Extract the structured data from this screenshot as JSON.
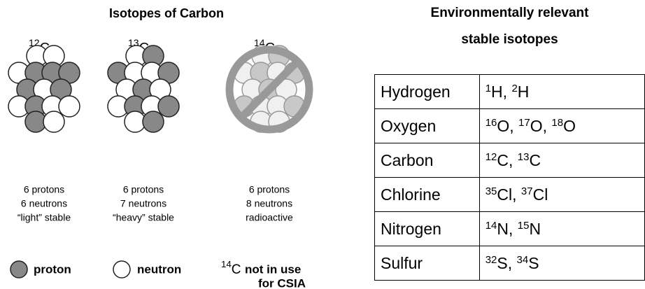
{
  "left": {
    "title": "Isotopes of Carbon",
    "isotopes": [
      {
        "mass": "12",
        "symbol": "C",
        "lines": [
          "6 protons",
          "6 neutrons",
          "“light” stable"
        ]
      },
      {
        "mass": "13",
        "symbol": "C",
        "lines": [
          "6 protons",
          "7 neutrons",
          "“heavy” stable"
        ]
      },
      {
        "mass": "14",
        "symbol": "C",
        "lines": [
          "6 protons",
          "8 neutrons",
          "radioactive"
        ]
      }
    ],
    "legend": {
      "proton": "proton",
      "neutron": "neutron",
      "note": {
        "mass": "14",
        "symbol": "C",
        "lines": [
          "not in use",
          "for CSIA"
        ]
      }
    }
  },
  "right": {
    "title": [
      "Environmentally relevant",
      "stable isotopes"
    ],
    "rows": [
      {
        "element": "Hydrogen",
        "isotopes": [
          {
            "mass": "1",
            "symbol": "H"
          },
          {
            "mass": "2",
            "symbol": "H"
          }
        ]
      },
      {
        "element": "Oxygen",
        "isotopes": [
          {
            "mass": "16",
            "symbol": "O"
          },
          {
            "mass": "17",
            "symbol": "O"
          },
          {
            "mass": "18",
            "symbol": "O"
          }
        ]
      },
      {
        "element": "Carbon",
        "isotopes": [
          {
            "mass": "12",
            "symbol": "C"
          },
          {
            "mass": "13",
            "symbol": "C"
          }
        ]
      },
      {
        "element": "Chlorine",
        "isotopes": [
          {
            "mass": "35",
            "symbol": "Cl"
          },
          {
            "mass": "37",
            "symbol": "Cl"
          }
        ]
      },
      {
        "element": "Nitrogen",
        "isotopes": [
          {
            "mass": "14",
            "symbol": "N"
          },
          {
            "mass": "15",
            "symbol": "N"
          }
        ]
      },
      {
        "element": "Sulfur",
        "isotopes": [
          {
            "mass": "32",
            "symbol": "S"
          },
          {
            "mass": "34",
            "symbol": "S"
          }
        ]
      }
    ]
  }
}
